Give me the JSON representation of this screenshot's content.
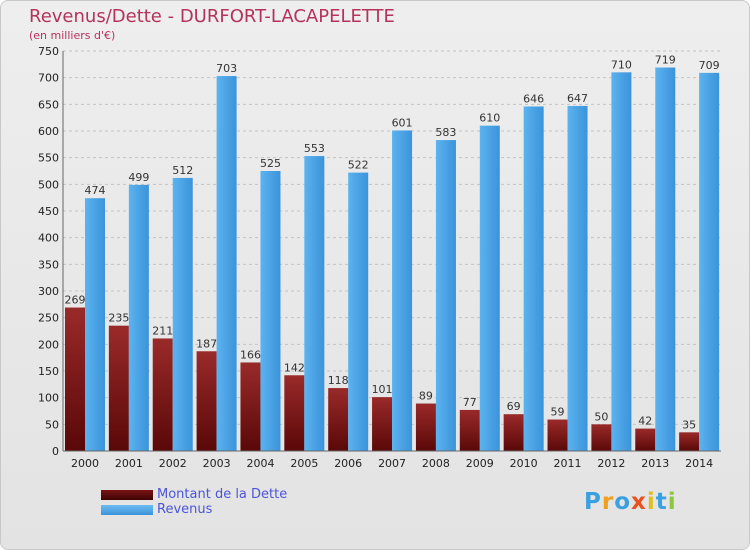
{
  "chart_data": {
    "type": "bar",
    "title": "Revenus/Dette - DURFORT-LACAPELETTE",
    "subtitle": "(en milliers d'€)",
    "categories": [
      "2000",
      "2001",
      "2002",
      "2003",
      "2004",
      "2005",
      "2006",
      "2007",
      "2008",
      "2009",
      "2010",
      "2011",
      "2012",
      "2013",
      "2014"
    ],
    "series": [
      {
        "name": "Montant de la Dette",
        "color": "#8b1a1a",
        "values": [
          269,
          235,
          211,
          187,
          166,
          142,
          118,
          101,
          89,
          77,
          69,
          59,
          50,
          42,
          35
        ]
      },
      {
        "name": "Revenus",
        "color": "#4aa3e8",
        "values": [
          474,
          499,
          512,
          703,
          525,
          553,
          522,
          601,
          583,
          610,
          646,
          647,
          710,
          719,
          709
        ]
      }
    ],
    "ylim": [
      0,
      750
    ],
    "yticks": [
      0,
      50,
      100,
      150,
      200,
      250,
      300,
      350,
      400,
      450,
      500,
      550,
      600,
      650,
      700,
      750
    ],
    "grid": true,
    "legend": "bottom-left"
  },
  "logo": {
    "letters": [
      "P",
      "r",
      "o",
      "x",
      "i",
      "t",
      "i"
    ],
    "colors": [
      "#3aa0e0",
      "#f0a020",
      "#3aa0e0",
      "#e8521f",
      "#e0c020",
      "#3aa0e0",
      "#8dc63f"
    ]
  }
}
